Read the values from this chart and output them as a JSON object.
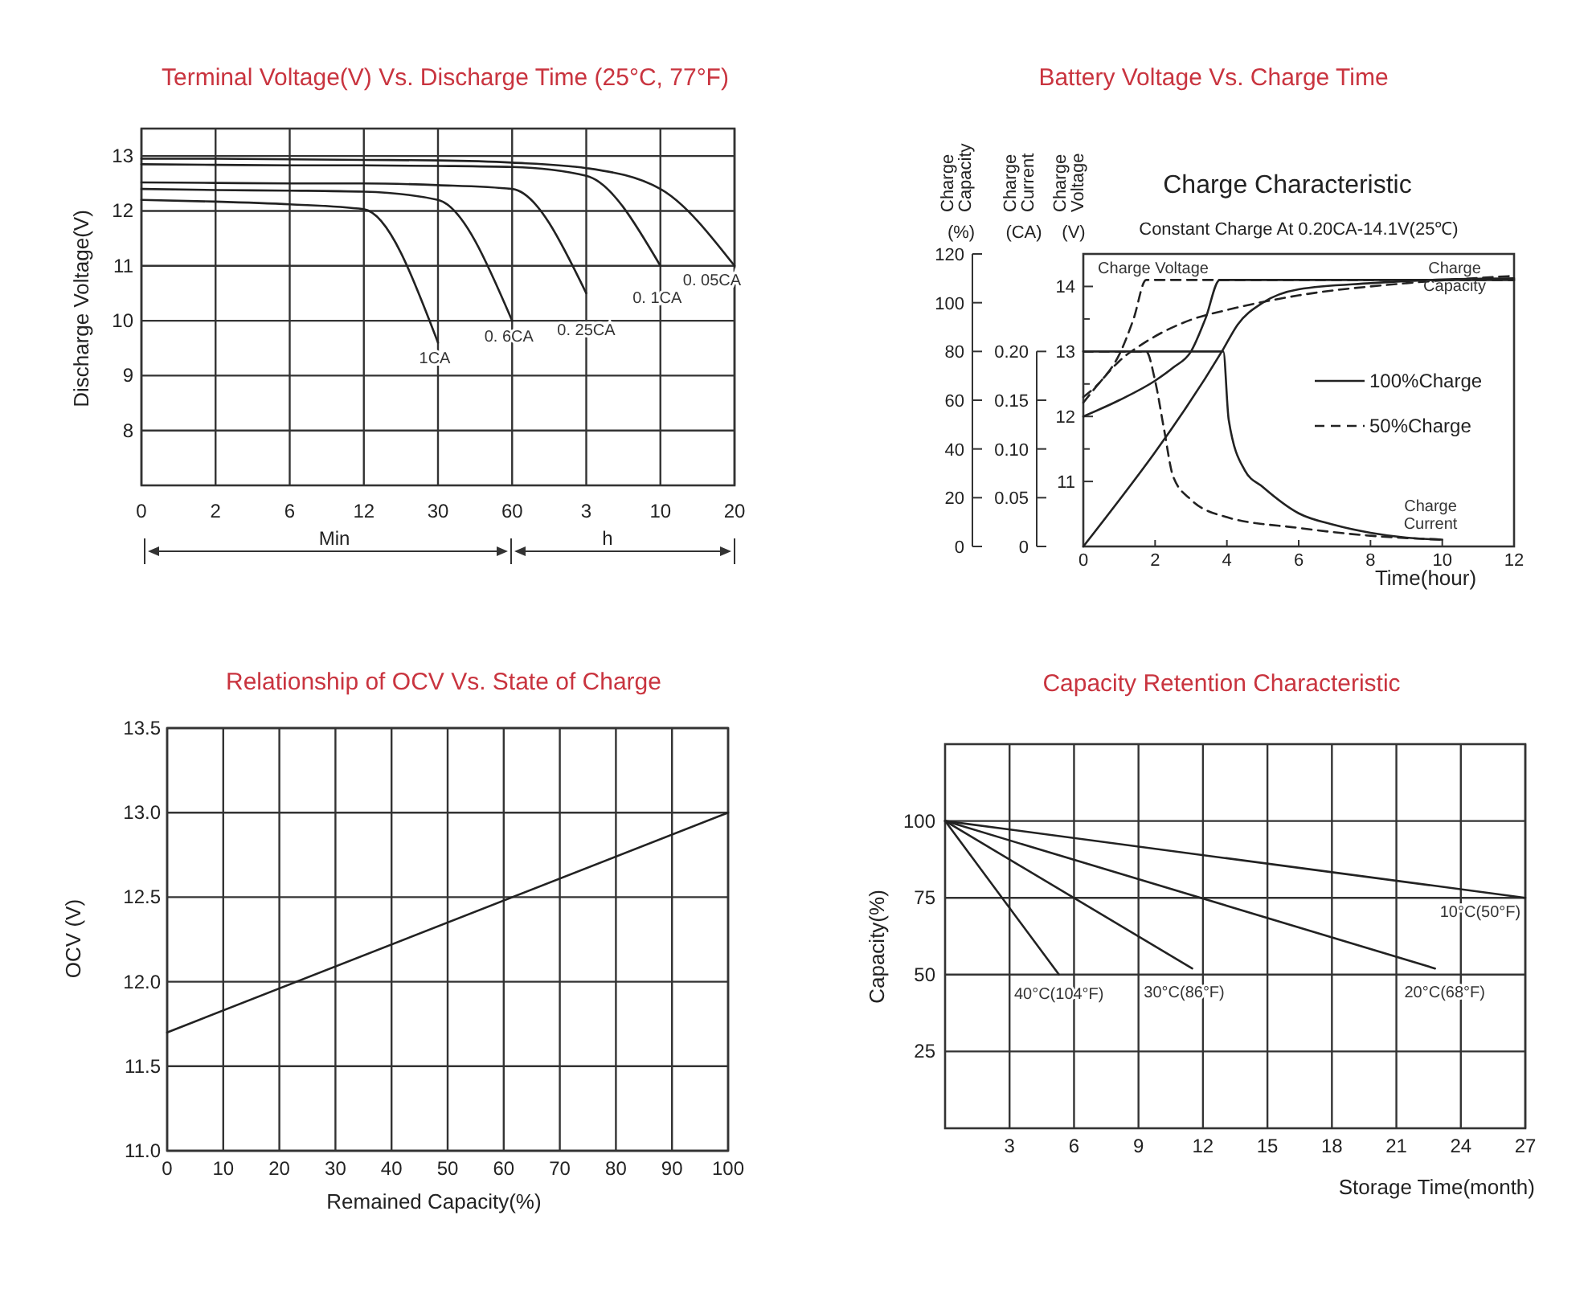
{
  "chart_data": [
    {
      "type": "line",
      "title": "Terminal Voltage(V) Vs. Discharge Time (25°C, 77°F)",
      "ylabel": "Discharge Voltage(V)",
      "annotations": [
        "Min",
        "h"
      ],
      "categories": [
        "0",
        "2",
        "6",
        "12",
        "30",
        "60",
        "3",
        "10",
        "20"
      ],
      "ylim": [
        7,
        13.5
      ],
      "yticks": [
        8,
        9,
        10,
        11,
        12,
        13
      ],
      "grid": true,
      "series": [
        {
          "name": "1CA",
          "color": "#222222",
          "values": [
            12.2,
            12.17,
            12.12,
            12.03,
            9.6,
            null,
            null,
            null,
            null
          ]
        },
        {
          "name": "0. 6CA",
          "color": "#222222",
          "values": [
            12.4,
            12.38,
            12.37,
            12.35,
            12.2,
            10.0,
            null,
            null,
            null
          ]
        },
        {
          "name": "0. 25CA",
          "color": "#222222",
          "values": [
            12.52,
            12.51,
            12.5,
            12.5,
            12.47,
            12.4,
            10.5,
            null,
            null
          ]
        },
        {
          "name": "0. 1CA",
          "color": "#222222",
          "values": [
            12.85,
            12.84,
            12.83,
            12.83,
            12.82,
            12.8,
            12.64,
            11.0,
            null
          ]
        },
        {
          "name": "0. 05CA",
          "color": "#222222",
          "values": [
            12.95,
            12.95,
            12.94,
            12.93,
            12.92,
            12.88,
            12.78,
            12.4,
            11.0
          ]
        }
      ]
    },
    {
      "type": "line",
      "title": "Battery Voltage Vs. Charge Time",
      "subtitle": "Charge Characteristic",
      "annotations": [
        "Constant Charge At 0.20CA-14.1V(25℃)",
        "100%Charge",
        "50%Charge"
      ],
      "xlabel": "Time(hour)",
      "ylabel": "Charge Capacity (%)",
      "y2label": "Charge Current (CA)",
      "y3label": "Charge Voltage (V)",
      "line_style": "solid",
      "xlim": [
        0,
        12
      ],
      "xticks": [
        0,
        2,
        4,
        6,
        8,
        10,
        12
      ],
      "ylim": [
        0,
        120
      ],
      "yticks": [
        0,
        20,
        40,
        60,
        80,
        100,
        120
      ],
      "y2lim": [
        0,
        0.3
      ],
      "y2ticks": [
        0,
        0.05,
        {
          "value": 0.1,
          "label": "0.10"
        },
        0.15,
        {
          "value": 0.2,
          "label": "0.20"
        }
      ],
      "y3lim": [
        10,
        14.5
      ],
      "y3ticks": [
        11,
        {
          "value": 11.5,
          "label": null
        },
        12,
        {
          "value": 12.5,
          "label": null
        },
        13,
        {
          "value": 13.5,
          "label": null
        },
        14
      ],
      "series": [
        {
          "name": "Charge Voltage",
          "color": "#222222",
          "axis": "y3",
          "x": [
            0,
            1,
            2,
            2.5,
            3,
            3.4,
            3.8,
            12
          ],
          "values": [
            12,
            12.25,
            12.55,
            12.75,
            13.0,
            13.5,
            14.1,
            14.1
          ]
        },
        {
          "name": "Charge Capacity",
          "color": "#222222",
          "x": [
            0,
            3.9,
            4.3,
            5,
            6,
            8,
            10,
            12
          ],
          "values": [
            0,
            81,
            91,
            100,
            105.5,
            108,
            109.5,
            110
          ]
        },
        {
          "name": "Charge Current",
          "color": "#222222",
          "axis": "y2",
          "x": [
            0,
            3.9,
            4.05,
            4.5,
            5,
            6,
            7,
            8,
            9,
            10
          ],
          "values": [
            0.2,
            0.2,
            0.13,
            0.078,
            0.061,
            0.034,
            0.022,
            0.014,
            0.009,
            0.007
          ]
        },
        {
          "color": "#222222",
          "axis": "y3",
          "line_style": "dashed",
          "x": [
            0,
            0.5,
            1,
            1.4,
            1.75,
            12
          ],
          "values": [
            12.3,
            12.55,
            12.95,
            13.5,
            14.1,
            14.1
          ]
        },
        {
          "color": "#222222",
          "line_style": "dashed",
          "x": [
            0,
            0.5,
            1,
            1.75,
            3,
            4,
            6,
            9,
            12
          ],
          "values": [
            59,
            68,
            76,
            84,
            93,
            97,
            103,
            108,
            111
          ]
        },
        {
          "color": "#222222",
          "axis": "y2",
          "line_style": "dashed",
          "x": [
            0,
            1.75,
            2,
            2.25,
            2.5,
            3,
            4,
            6,
            8,
            10
          ],
          "values": [
            0.2,
            0.2,
            0.17,
            0.12,
            0.072,
            0.048,
            0.03,
            0.019,
            0.011,
            0.007
          ]
        }
      ]
    },
    {
      "type": "line",
      "title": "Relationship of OCV Vs. State of Charge",
      "xlabel": "Remained Capacity(%)",
      "ylabel": "OCV (V)",
      "xlim": [
        0,
        100
      ],
      "xticks": [
        0,
        10,
        20,
        30,
        40,
        50,
        60,
        70,
        80,
        90,
        100
      ],
      "ylim": [
        11,
        13.5
      ],
      "yticks": [
        {
          "value": 11,
          "label": "11.0"
        },
        11.5,
        {
          "value": 12,
          "label": "12.0"
        },
        12.5,
        {
          "value": 13,
          "label": "13.0"
        },
        13.5
      ],
      "grid": true,
      "series": [
        {
          "color": "#222222",
          "x": [
            0,
            100
          ],
          "values": [
            11.7,
            13.0
          ]
        }
      ]
    },
    {
      "type": "line",
      "title": "Capacity Retention Characteristic",
      "xlabel": "Storage Time(month)",
      "ylabel": "Capacity(%)",
      "xlim": [
        0,
        27
      ],
      "xticks": [
        3,
        6,
        9,
        12,
        15,
        18,
        21,
        24,
        27
      ],
      "ylim": [
        0,
        125
      ],
      "yticks": [
        25,
        50,
        75,
        100
      ],
      "grid": true,
      "series": [
        {
          "name": "10°C(50°F)",
          "color": "#222222",
          "x": [
            0,
            27
          ],
          "values": [
            100,
            75
          ]
        },
        {
          "name": "20°C(68°F)",
          "color": "#222222",
          "x": [
            0,
            22.8
          ],
          "values": [
            100,
            52
          ]
        },
        {
          "name": "30°C(86°F)",
          "color": "#222222",
          "x": [
            0,
            11.5
          ],
          "values": [
            100,
            52
          ]
        },
        {
          "name": "40°C(104°F)",
          "color": "#222222",
          "x": [
            0,
            5.3
          ],
          "values": [
            100,
            50
          ]
        }
      ]
    }
  ]
}
